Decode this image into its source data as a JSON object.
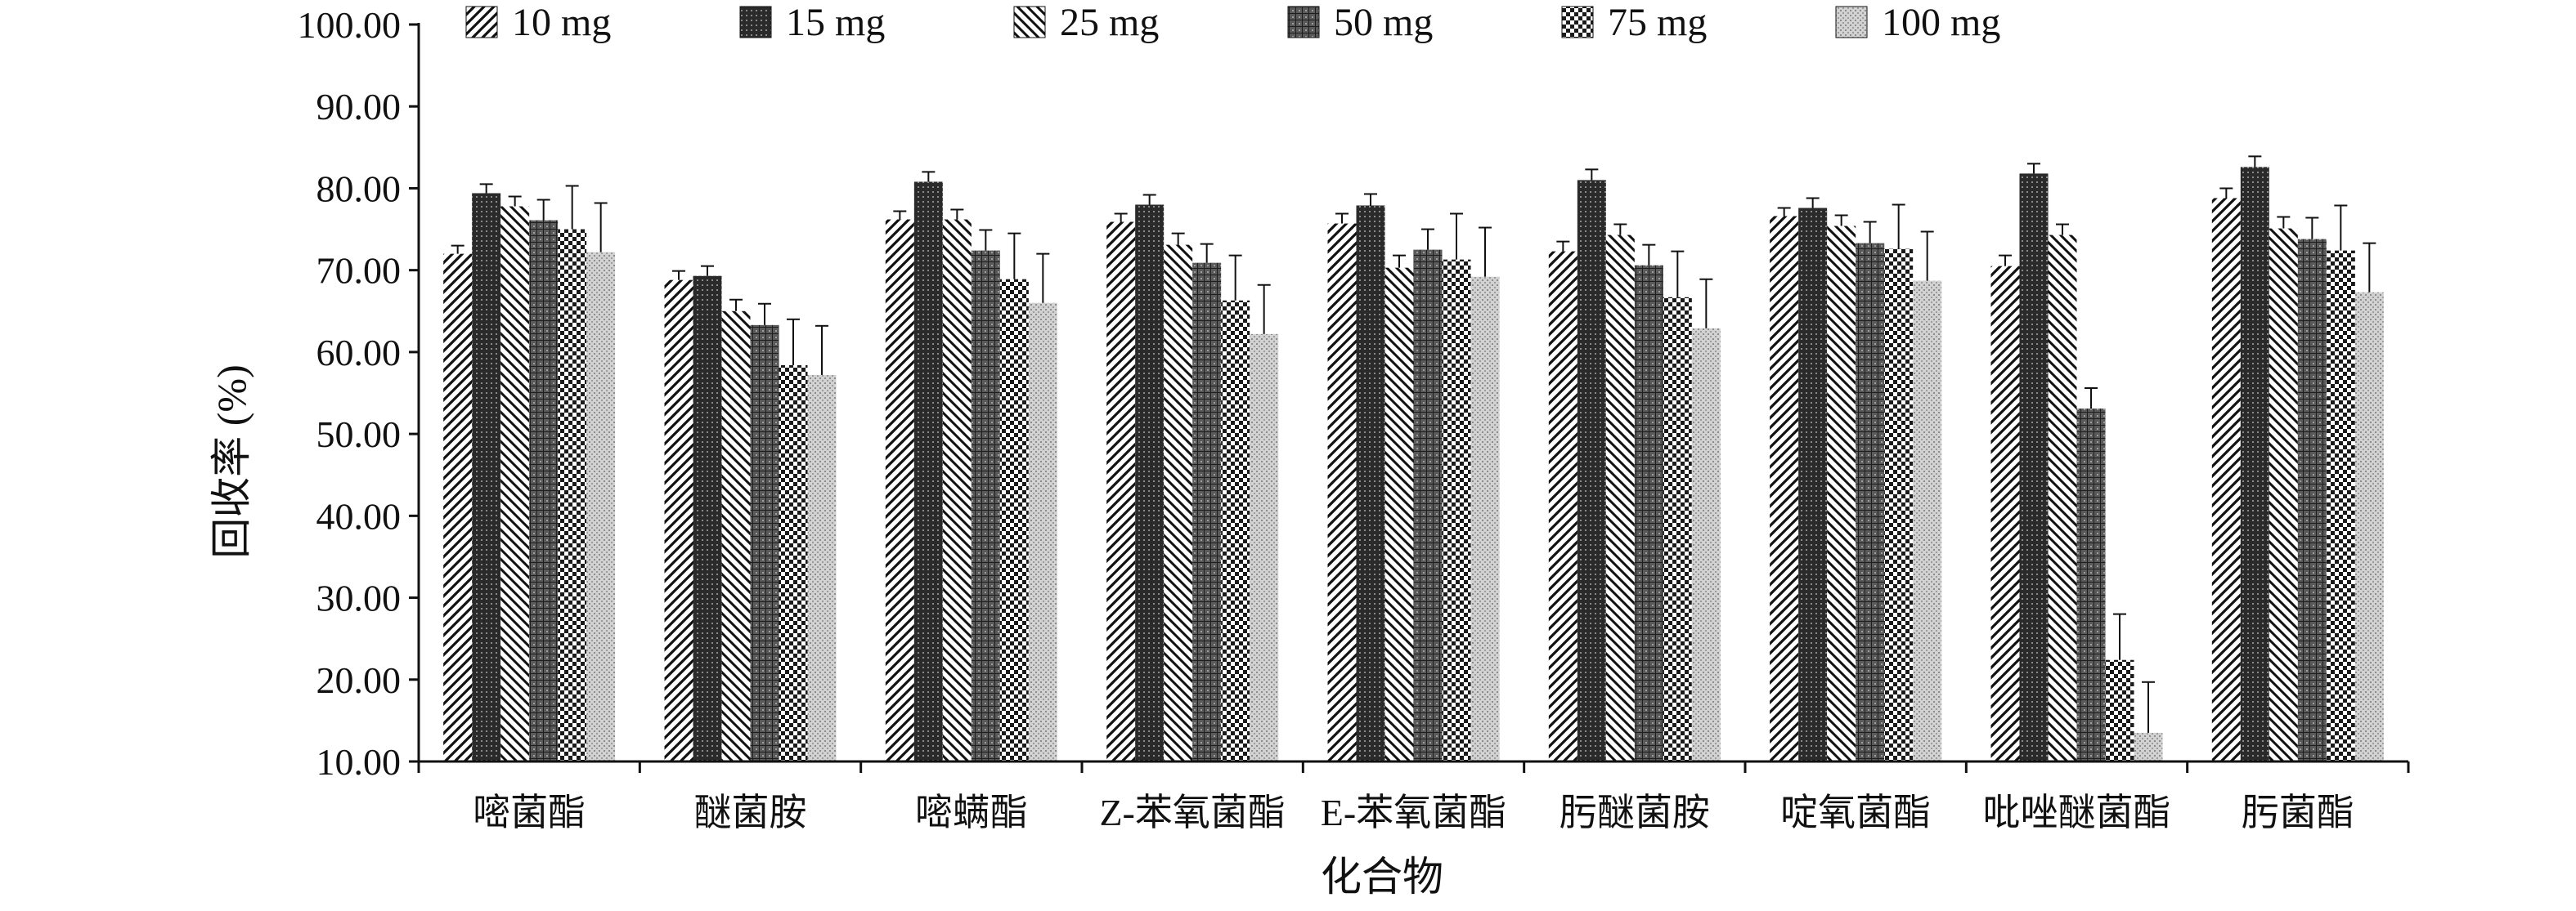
{
  "chart_data": {
    "type": "bar",
    "xlabel": "化合物",
    "ylabel": "回收率 (%)",
    "ylim": [
      10,
      100
    ],
    "yticks": [
      "10.00",
      "20.00",
      "30.00",
      "40.00",
      "50.00",
      "60.00",
      "70.00",
      "80.00",
      "90.00",
      "100.00"
    ],
    "grid": false,
    "legend_position": "top",
    "error_bars": true,
    "categories": [
      "嘧菌酯",
      "醚菌胺",
      "嘧螨酯",
      "Z-苯氧菌酯",
      "E-苯氧菌酯",
      "肟醚菌胺",
      "啶氧菌酯",
      "吡唑醚菌酯",
      "肟菌酯"
    ],
    "series": [
      {
        "name": "10 mg",
        "pattern": "diagonal-forward",
        "values": [
          72.0,
          68.8,
          76.2,
          75.9,
          75.7,
          72.3,
          76.6,
          70.5,
          78.8
        ],
        "errors": [
          1.0,
          1.1,
          1.0,
          1.0,
          1.2,
          1.2,
          1.0,
          1.3,
          1.2
        ]
      },
      {
        "name": "15 mg",
        "pattern": "dense-dark",
        "values": [
          79.4,
          69.3,
          80.8,
          78.0,
          77.9,
          81.0,
          77.6,
          81.8,
          82.6
        ],
        "errors": [
          1.1,
          1.2,
          1.2,
          1.2,
          1.4,
          1.3,
          1.2,
          1.2,
          1.3
        ]
      },
      {
        "name": "25 mg",
        "pattern": "diagonal-back",
        "values": [
          77.8,
          65.0,
          76.2,
          73.1,
          70.3,
          74.3,
          75.4,
          74.3,
          75.1
        ],
        "errors": [
          1.2,
          1.4,
          1.2,
          1.4,
          1.5,
          1.3,
          1.3,
          1.3,
          1.4
        ]
      },
      {
        "name": "50 mg",
        "pattern": "grid-dark",
        "values": [
          76.1,
          63.3,
          72.4,
          70.9,
          72.5,
          70.6,
          73.3,
          53.1,
          73.8
        ],
        "errors": [
          2.5,
          2.6,
          2.5,
          2.3,
          2.5,
          2.5,
          2.6,
          2.5,
          2.6
        ]
      },
      {
        "name": "75 mg",
        "pattern": "checker",
        "values": [
          75.0,
          58.4,
          68.9,
          66.3,
          71.3,
          66.7,
          72.6,
          22.4,
          72.4
        ],
        "errors": [
          5.3,
          5.6,
          5.6,
          5.5,
          5.6,
          5.6,
          5.4,
          5.6,
          5.5
        ]
      },
      {
        "name": "100 mg",
        "pattern": "light-dots",
        "values": [
          72.2,
          57.2,
          66.0,
          62.2,
          69.2,
          62.9,
          68.7,
          13.5,
          67.3
        ],
        "errors": [
          6.0,
          6.0,
          6.0,
          6.0,
          6.0,
          6.0,
          6.0,
          6.2,
          6.0
        ]
      }
    ]
  }
}
